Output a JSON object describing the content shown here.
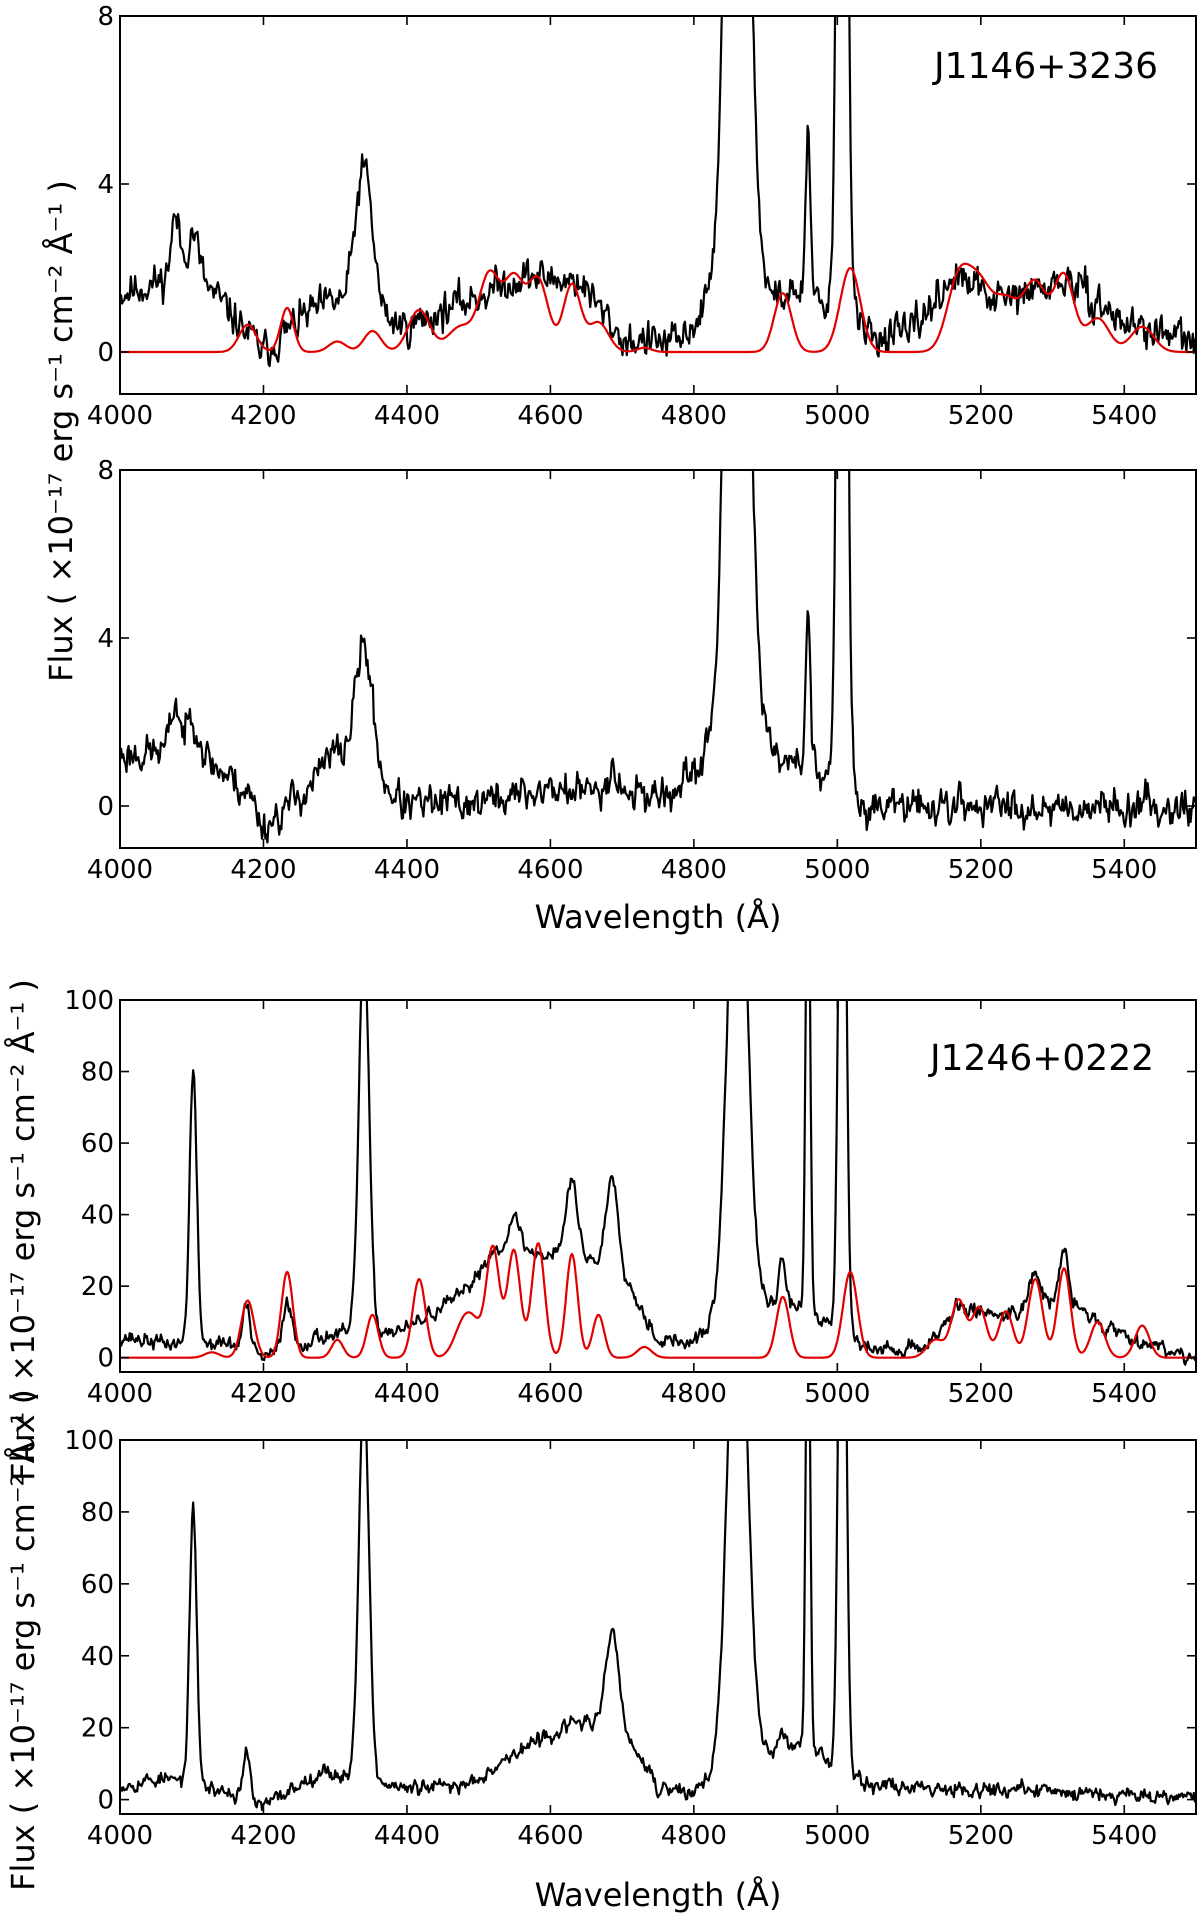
{
  "chart_data": [
    {
      "type": "line",
      "object": "J1146+3236",
      "xlabel": "Wavelength (Å)",
      "ylabel": "Flux ( ×10⁻¹⁷ erg s⁻¹ cm⁻² Å⁻¹ )",
      "xlim": [
        4000,
        5500
      ],
      "xticks": [
        "4000",
        "4200",
        "4400",
        "4600",
        "4800",
        "5000",
        "5200",
        "5400"
      ],
      "panels": [
        {
          "name": "observed spectrum with Fe II template",
          "ylim": [
            -1,
            8
          ],
          "yticks": [
            "0",
            "4",
            "8"
          ],
          "series": [
            {
              "name": "observed flux",
              "color": "#000000",
              "profile": {
                "continuum": [
                  [
                    4000,
                    1.4
                  ],
                  [
                    4100,
                    1.9
                  ],
                  [
                    4150,
                    1.0
                  ],
                  [
                    4200,
                    0.0
                  ],
                  [
                    4260,
                    0.9
                  ],
                  [
                    4300,
                    1.2
                  ],
                  [
                    4400,
                    0.6
                  ],
                  [
                    4480,
                    1.2
                  ],
                  [
                    4560,
                    1.8
                  ],
                  [
                    4640,
                    1.7
                  ],
                  [
                    4700,
                    0.3
                  ],
                  [
                    4780,
                    0.2
                  ],
                  [
                    4830,
                    1.4
                  ],
                  [
                    4900,
                    1.3
                  ],
                  [
                    4950,
                    1.4
                  ],
                  [
                    5050,
                    0.4
                  ],
                  [
                    5100,
                    0.4
                  ],
                  [
                    5160,
                    1.8
                  ],
                  [
                    5230,
                    1.2
                  ],
                  [
                    5320,
                    1.7
                  ],
                  [
                    5400,
                    0.7
                  ],
                  [
                    5500,
                    0.2
                  ]
                ],
                "lines": [
                  [
                    4077,
                    1.4,
                    6
                  ],
                  [
                    4102,
                    1.0,
                    8
                  ],
                  [
                    4340,
                    3.4,
                    12
                  ],
                  [
                    4861,
                    22,
                    14
                  ],
                  [
                    4959,
                    4.0,
                    3
                  ],
                  [
                    5007,
                    28,
                    6
                  ]
                ],
                "noise": 0.45,
                "seed": 11
              }
            },
            {
              "name": "Fe II template",
              "color": "#e00000",
              "profile": {
                "lines": [
                  [
                    4178,
                    0.65,
                    12
                  ],
                  [
                    4233,
                    1.05,
                    9
                  ],
                  [
                    4303,
                    0.25,
                    12
                  ],
                  [
                    4352,
                    0.5,
                    12
                  ],
                  [
                    4417,
                    1.0,
                    15
                  ],
                  [
                    4475,
                    0.6,
                    18
                  ],
                  [
                    4515,
                    1.8,
                    14
                  ],
                  [
                    4549,
                    1.7,
                    14
                  ],
                  [
                    4583,
                    1.7,
                    14
                  ],
                  [
                    4630,
                    1.6,
                    12
                  ],
                  [
                    4667,
                    0.7,
                    14
                  ],
                  [
                    4731,
                    0.1,
                    10
                  ],
                  [
                    4924,
                    1.4,
                    12
                  ],
                  [
                    5018,
                    2.0,
                    14
                  ],
                  [
                    5169,
                    1.7,
                    16
                  ],
                  [
                    5198,
                    1.4,
                    16
                  ],
                  [
                    5235,
                    1.2,
                    18
                  ],
                  [
                    5276,
                    1.6,
                    16
                  ],
                  [
                    5316,
                    1.8,
                    14
                  ],
                  [
                    5363,
                    0.8,
                    16
                  ],
                  [
                    5425,
                    0.6,
                    16
                  ]
                ]
              }
            }
          ]
        },
        {
          "name": "Fe II subtracted spectrum",
          "ylim": [
            -1,
            8
          ],
          "yticks": [
            "0",
            "4",
            "8"
          ],
          "series": [
            {
              "name": "residual flux",
              "color": "#000000",
              "profile": {
                "continuum": [
                  [
                    4000,
                    1.2
                  ],
                  [
                    4100,
                    1.4
                  ],
                  [
                    4180,
                    0.3
                  ],
                  [
                    4200,
                    -0.5
                  ],
                  [
                    4260,
                    0.4
                  ],
                  [
                    4300,
                    1.3
                  ],
                  [
                    4380,
                    0.3
                  ],
                  [
                    4400,
                    0.0
                  ],
                  [
                    4500,
                    0.1
                  ],
                  [
                    4600,
                    0.4
                  ],
                  [
                    4700,
                    0.3
                  ],
                  [
                    4780,
                    0.3
                  ],
                  [
                    4830,
                    1.5
                  ],
                  [
                    4900,
                    1.3
                  ],
                  [
                    4950,
                    1.1
                  ],
                  [
                    5020,
                    0.0
                  ],
                  [
                    5500,
                    0.0
                  ]
                ],
                "lines": [
                  [
                    4077,
                    1.1,
                    6
                  ],
                  [
                    4102,
                    0.8,
                    8
                  ],
                  [
                    4340,
                    3.0,
                    12
                  ],
                  [
                    4686,
                    0.6,
                    8
                  ],
                  [
                    4861,
                    22,
                    14
                  ],
                  [
                    4959,
                    4.0,
                    3
                  ],
                  [
                    5007,
                    28,
                    6
                  ]
                ],
                "noise": 0.45,
                "seed": 23
              }
            }
          ]
        }
      ]
    },
    {
      "type": "line",
      "object": "J1246+0222",
      "xlabel": "Wavelength (Å)",
      "ylabel": "Flux ( ×10⁻¹⁷ erg s⁻¹ cm⁻² Å⁻¹ )",
      "xlim": [
        4000,
        5500
      ],
      "xticks": [
        "4000",
        "4200",
        "4400",
        "4600",
        "4800",
        "5000",
        "5200",
        "5400"
      ],
      "panels": [
        {
          "name": "observed spectrum with Fe II template",
          "ylim": [
            -4,
            100
          ],
          "yticks": [
            "0",
            "20",
            "40",
            "60",
            "80",
            "100"
          ],
          "series": [
            {
              "name": "observed flux",
              "color": "#000000",
              "profile": {
                "continuum": [
                  [
                    4000,
                    6
                  ],
                  [
                    4060,
                    4
                  ],
                  [
                    4150,
                    4
                  ],
                  [
                    4200,
                    0
                  ],
                  [
                    4280,
                    6
                  ],
                  [
                    4400,
                    8
                  ],
                  [
                    4480,
                    18
                  ],
                  [
                    4520,
                    30
                  ],
                  [
                    4560,
                    28
                  ],
                  [
                    4620,
                    30
                  ],
                  [
                    4700,
                    24
                  ],
                  [
                    4750,
                    5
                  ],
                  [
                    4800,
                    4
                  ],
                  [
                    4850,
                    15
                  ],
                  [
                    4950,
                    15
                  ],
                  [
                    5050,
                    2
                  ],
                  [
                    5120,
                    3
                  ],
                  [
                    5170,
                    14
                  ],
                  [
                    5230,
                    12
                  ],
                  [
                    5320,
                    16
                  ],
                  [
                    5380,
                    8
                  ],
                  [
                    5450,
                    3
                  ],
                  [
                    5500,
                    0
                  ]
                ],
                "lines": [
                  [
                    4102,
                    76,
                    5
                  ],
                  [
                    4176,
                    13,
                    5
                  ],
                  [
                    4233,
                    14,
                    6
                  ],
                  [
                    4340,
                    110,
                    7
                  ],
                  [
                    4550,
                    10,
                    10
                  ],
                  [
                    4630,
                    20,
                    8
                  ],
                  [
                    4686,
                    26,
                    8
                  ],
                  [
                    4861,
                    150,
                    13
                  ],
                  [
                    4923,
                    14,
                    4
                  ],
                  [
                    4959,
                    140,
                    3
                  ],
                  [
                    5007,
                    200,
                    5
                  ],
                  [
                    5275,
                    10,
                    8
                  ],
                  [
                    5316,
                    14,
                    6
                  ]
                ],
                "noise": 2.2,
                "seed": 37
              }
            },
            {
              "name": "Fe II template",
              "color": "#e00000",
              "profile": {
                "lines": [
                  [
                    4128,
                    1.5,
                    10
                  ],
                  [
                    4178,
                    16,
                    9
                  ],
                  [
                    4233,
                    24,
                    8
                  ],
                  [
                    4303,
                    5,
                    8
                  ],
                  [
                    4352,
                    12,
                    8
                  ],
                  [
                    4417,
                    22,
                    9
                  ],
                  [
                    4475,
                    5,
                    12
                  ],
                  [
                    4491,
                    10,
                    14
                  ],
                  [
                    4520,
                    30,
                    9
                  ],
                  [
                    4549,
                    30,
                    9
                  ],
                  [
                    4583,
                    32,
                    9
                  ],
                  [
                    4630,
                    29,
                    8
                  ],
                  [
                    4667,
                    12,
                    8
                  ],
                  [
                    4731,
                    3,
                    10
                  ],
                  [
                    4924,
                    17,
                    9
                  ],
                  [
                    5018,
                    24,
                    10
                  ],
                  [
                    5137,
                    5,
                    12
                  ],
                  [
                    5169,
                    16,
                    10
                  ],
                  [
                    5198,
                    14,
                    10
                  ],
                  [
                    5235,
                    13,
                    10
                  ],
                  [
                    5276,
                    22,
                    10
                  ],
                  [
                    5316,
                    25,
                    9
                  ],
                  [
                    5363,
                    10,
                    10
                  ],
                  [
                    5425,
                    9,
                    10
                  ]
                ]
              }
            }
          ]
        },
        {
          "name": "Fe II subtracted spectrum",
          "ylim": [
            -4,
            100
          ],
          "yticks": [
            "0",
            "20",
            "40",
            "60",
            "80",
            "100"
          ],
          "series": [
            {
              "name": "residual flux",
              "color": "#000000",
              "profile": {
                "continuum": [
                  [
                    4000,
                    4
                  ],
                  [
                    4060,
                    6
                  ],
                  [
                    4150,
                    2
                  ],
                  [
                    4200,
                    -2
                  ],
                  [
                    4280,
                    8
                  ],
                  [
                    4400,
                    3
                  ],
                  [
                    4480,
                    4
                  ],
                  [
                    4560,
                    14
                  ],
                  [
                    4640,
                    22
                  ],
                  [
                    4700,
                    20
                  ],
                  [
                    4750,
                    3
                  ],
                  [
                    4800,
                    2
                  ],
                  [
                    4850,
                    12
                  ],
                  [
                    4950,
                    15
                  ],
                  [
                    5050,
                    4
                  ],
                  [
                    5500,
                    1
                  ]
                ],
                "lines": [
                  [
                    4102,
                    76,
                    5
                  ],
                  [
                    4176,
                    13,
                    5
                  ],
                  [
                    4340,
                    110,
                    7
                  ],
                  [
                    4686,
                    28,
                    8
                  ],
                  [
                    4861,
                    150,
                    13
                  ],
                  [
                    4923,
                    6,
                    4
                  ],
                  [
                    4959,
                    140,
                    3
                  ],
                  [
                    5007,
                    200,
                    5
                  ]
                ],
                "noise": 2.2,
                "seed": 53
              }
            }
          ]
        }
      ]
    }
  ]
}
